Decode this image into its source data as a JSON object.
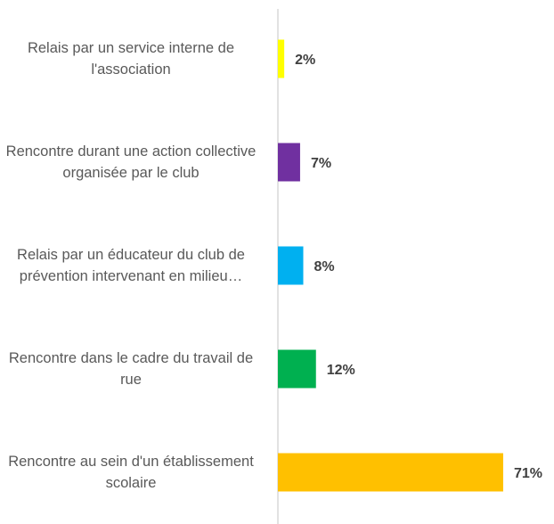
{
  "chart_data": {
    "type": "barh",
    "categories": [
      "Relais par un service interne de l'association",
      "Rencontre durant une action collective organisée par le club",
      "Relais par un éducateur du club de prévention intervenant en milieu…",
      "Rencontre dans le cadre du travail de rue",
      "Rencontre au sein d'un établissement scolaire"
    ],
    "values": [
      2,
      7,
      8,
      12,
      71
    ],
    "value_labels": [
      "2%",
      "7%",
      "8%",
      "12%",
      "71%"
    ],
    "colors": [
      "#ffff00",
      "#7030a0",
      "#00b0f0",
      "#00b050",
      "#ffc000"
    ],
    "xlim": [
      0,
      80
    ]
  }
}
